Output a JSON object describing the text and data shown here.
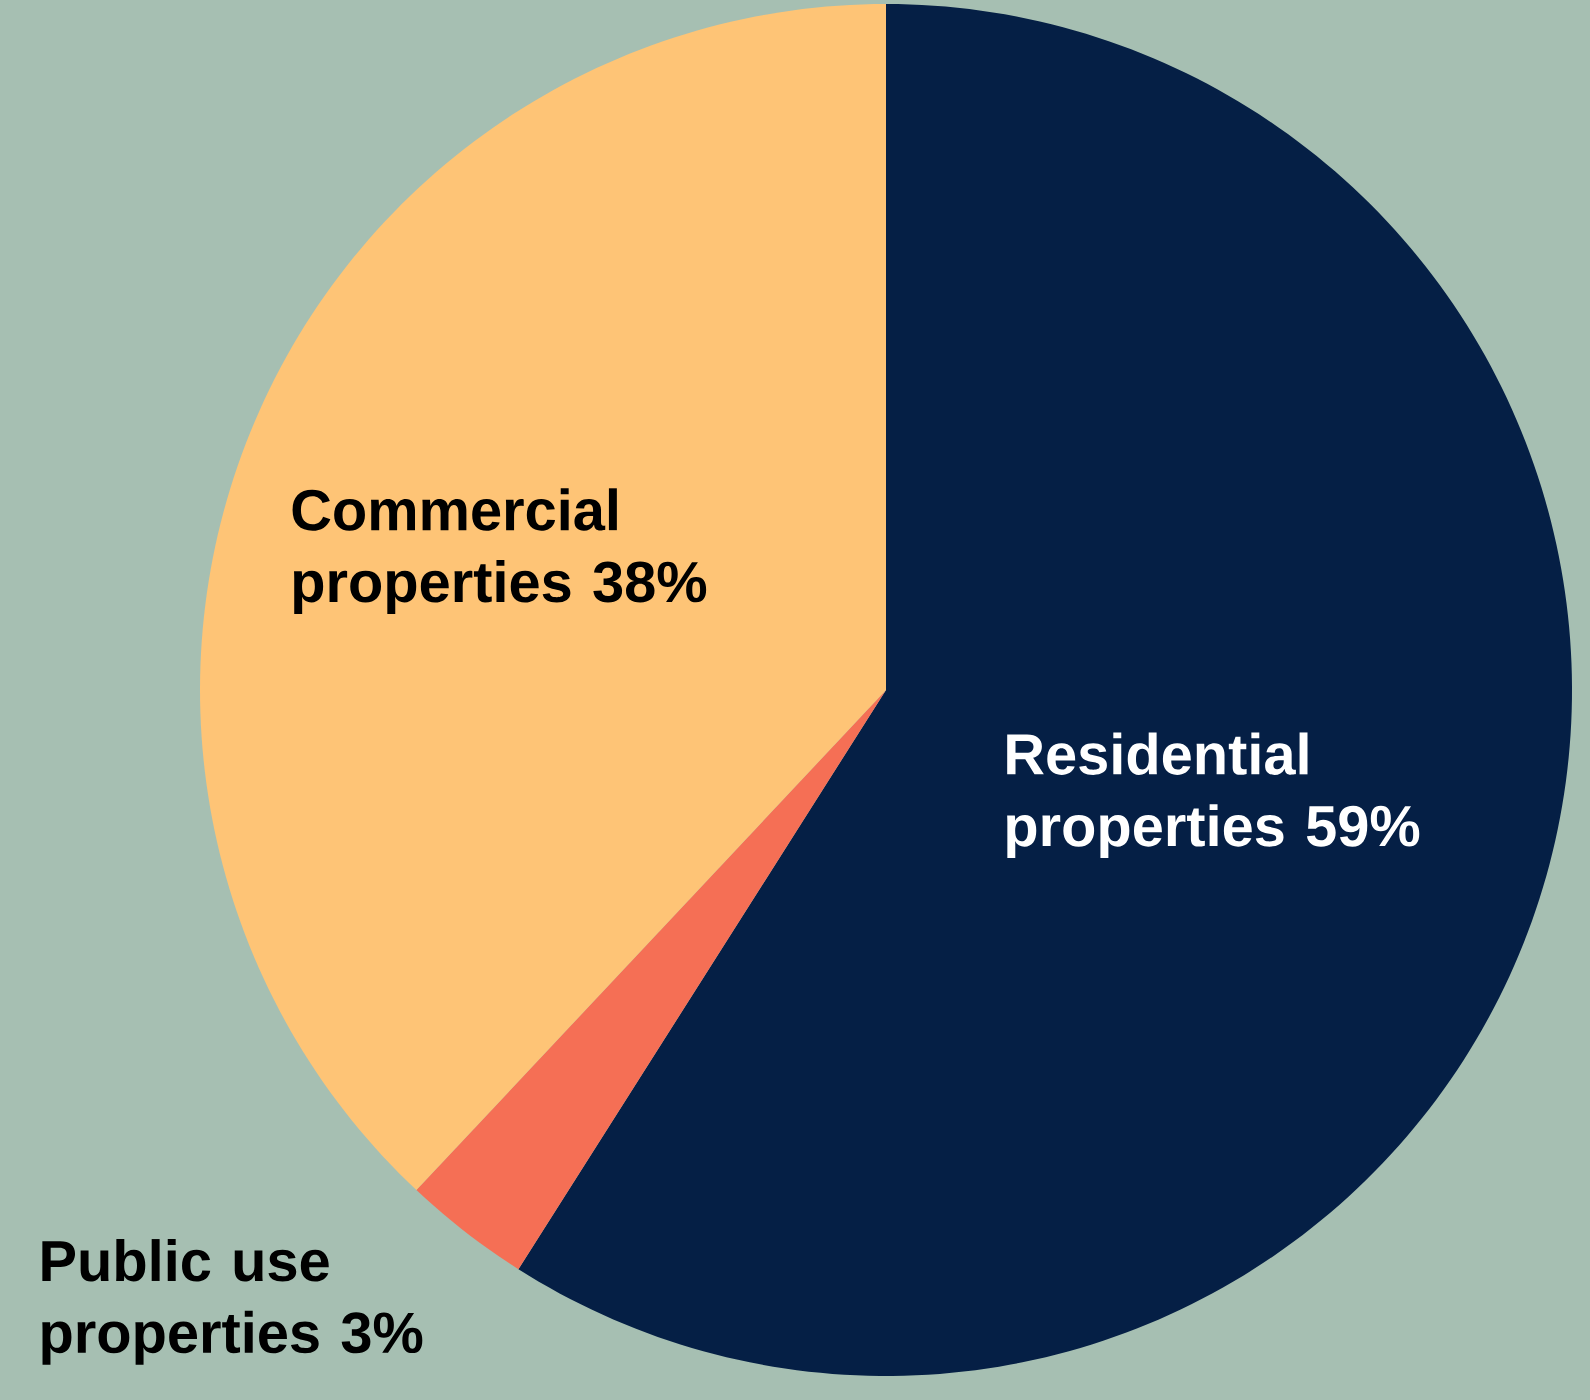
{
  "chart_data": {
    "type": "pie",
    "categories": [
      "Residential properties",
      "Public use properties",
      "Commercial properties"
    ],
    "values": [
      59,
      3,
      38
    ],
    "value_labels": [
      "59%",
      "3%",
      "38%"
    ],
    "colors": [
      "#051f45",
      "#f56f55",
      "#fec476"
    ]
  }
}
